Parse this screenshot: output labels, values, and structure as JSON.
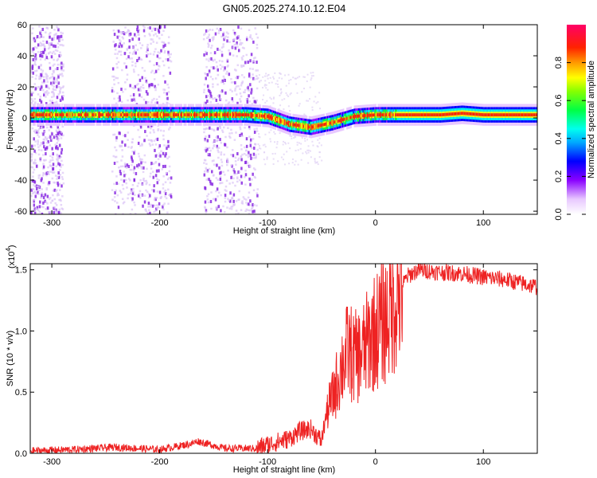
{
  "figure_title": "GN05.2025.274.10.12.E04",
  "chart_data": [
    {
      "type": "heatmap",
      "panel": "spectrogram",
      "xlabel": "Height of straight line (km)",
      "ylabel": "Frequency (Hz)",
      "xlim": [
        -320,
        150
      ],
      "ylim": [
        -62,
        60
      ],
      "x_ticks": [
        -300,
        -200,
        -100,
        0,
        100
      ],
      "x_tick_labels": [
        "-300",
        "-200",
        "-100",
        "0",
        "100"
      ],
      "y_ticks": [
        -60,
        -40,
        -20,
        0,
        20,
        40,
        60
      ],
      "y_tick_labels": [
        "-60",
        "-40",
        "-20",
        "0",
        "20",
        "40",
        "60"
      ],
      "center_line": {
        "x": [
          -320,
          -120,
          -100,
          -80,
          -60,
          -40,
          -20,
          0,
          20,
          60,
          80,
          100,
          150
        ],
        "y": [
          2,
          2,
          1,
          -4,
          -6,
          -3,
          1,
          2,
          2,
          2,
          3,
          2,
          2
        ]
      },
      "noise_bands_x": [
        [
          -320,
          -290
        ],
        [
          -245,
          -190
        ],
        [
          -160,
          -110
        ]
      ],
      "colorbar": {
        "label": "Normalized spectral amplitude",
        "range": [
          0.0,
          1.0
        ],
        "ticks": [
          0.0,
          0.2,
          0.4,
          0.6,
          0.8
        ],
        "tick_labels": [
          "0.0",
          "0.2",
          "0.4",
          "0.6",
          "0.8"
        ]
      }
    },
    {
      "type": "line",
      "panel": "snr",
      "xlabel": "Height of straight line (km)",
      "ylabel": "SNR (10 * v/v)",
      "y_multiplier_base": "(x10",
      "y_multiplier_exp": "4",
      "y_multiplier_end": ")",
      "xlim": [
        -320,
        150
      ],
      "ylim": [
        0,
        1.55
      ],
      "x_ticks": [
        -300,
        -200,
        -100,
        0,
        100
      ],
      "x_tick_labels": [
        "-300",
        "-200",
        "-100",
        "0",
        "100"
      ],
      "y_ticks": [
        0.0,
        0.5,
        1.0,
        1.5
      ],
      "y_tick_labels": [
        "0.0",
        "0.5",
        "1.0",
        "1.5"
      ],
      "color": "#ee2222",
      "series": [
        {
          "name": "SNR",
          "x": [
            -320,
            -280,
            -240,
            -200,
            -170,
            -165,
            -140,
            -110,
            -100,
            -80,
            -70,
            -60,
            -50,
            -45,
            -40,
            -35,
            -30,
            -25,
            -20,
            -15,
            -10,
            -5,
            0,
            10,
            20,
            30,
            40,
            60,
            80,
            100,
            120,
            150
          ],
          "y": [
            0.02,
            0.03,
            0.05,
            0.03,
            0.08,
            0.1,
            0.04,
            0.04,
            0.07,
            0.12,
            0.18,
            0.2,
            0.1,
            0.35,
            0.45,
            0.6,
            0.75,
            0.85,
            0.78,
            0.8,
            0.85,
            0.95,
            1.0,
            1.1,
            1.3,
            1.45,
            1.5,
            1.48,
            1.47,
            1.44,
            1.42,
            1.36
          ]
        }
      ]
    }
  ]
}
